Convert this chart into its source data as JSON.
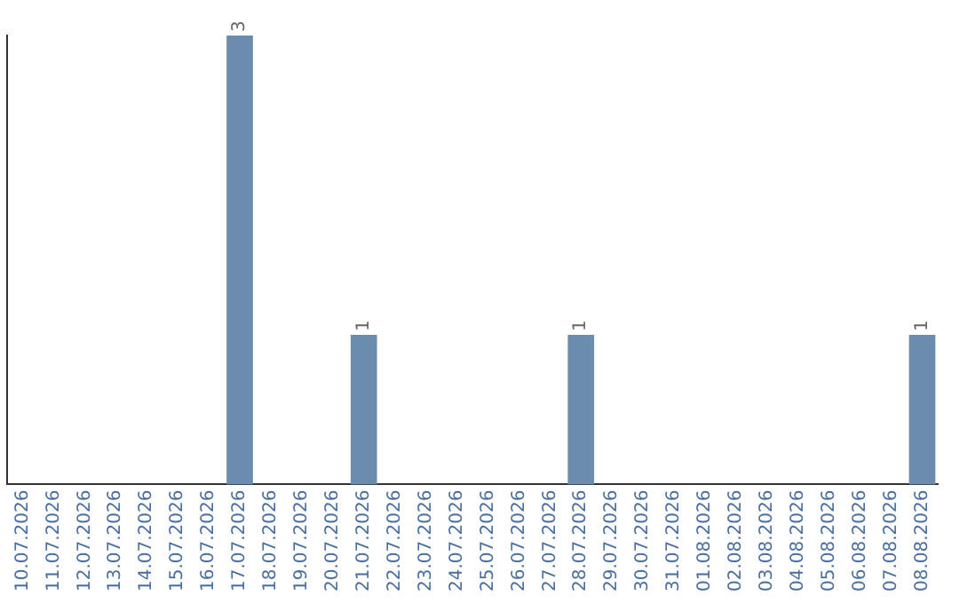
{
  "chart_data": {
    "type": "bar",
    "categories": [
      "10.07.2026",
      "11.07.2026",
      "12.07.2026",
      "13.07.2026",
      "14.07.2026",
      "15.07.2026",
      "16.07.2026",
      "17.07.2026",
      "18.07.2026",
      "19.07.2026",
      "20.07.2026",
      "21.07.2026",
      "22.07.2026",
      "23.07.2026",
      "24.07.2026",
      "25.07.2026",
      "26.07.2026",
      "27.07.2026",
      "28.07.2026",
      "29.07.2026",
      "30.07.2026",
      "31.07.2026",
      "01.08.2026",
      "02.08.2026",
      "03.08.2026",
      "04.08.2026",
      "05.08.2026",
      "06.08.2026",
      "07.08.2026",
      "08.08.2026"
    ],
    "values": [
      0,
      0,
      0,
      0,
      0,
      0,
      0,
      3,
      0,
      0,
      0,
      1,
      0,
      0,
      0,
      0,
      0,
      0,
      1,
      0,
      0,
      0,
      0,
      0,
      0,
      0,
      0,
      0,
      0,
      1
    ],
    "value_labels": [
      null,
      null,
      null,
      null,
      null,
      null,
      null,
      "3",
      null,
      null,
      null,
      "1",
      null,
      null,
      null,
      null,
      null,
      null,
      "1",
      null,
      null,
      null,
      null,
      null,
      null,
      null,
      null,
      null,
      null,
      "1"
    ],
    "color": "#6b8cae",
    "ylim": [
      0,
      3
    ],
    "tick_labels": "x",
    "grid": false
  }
}
